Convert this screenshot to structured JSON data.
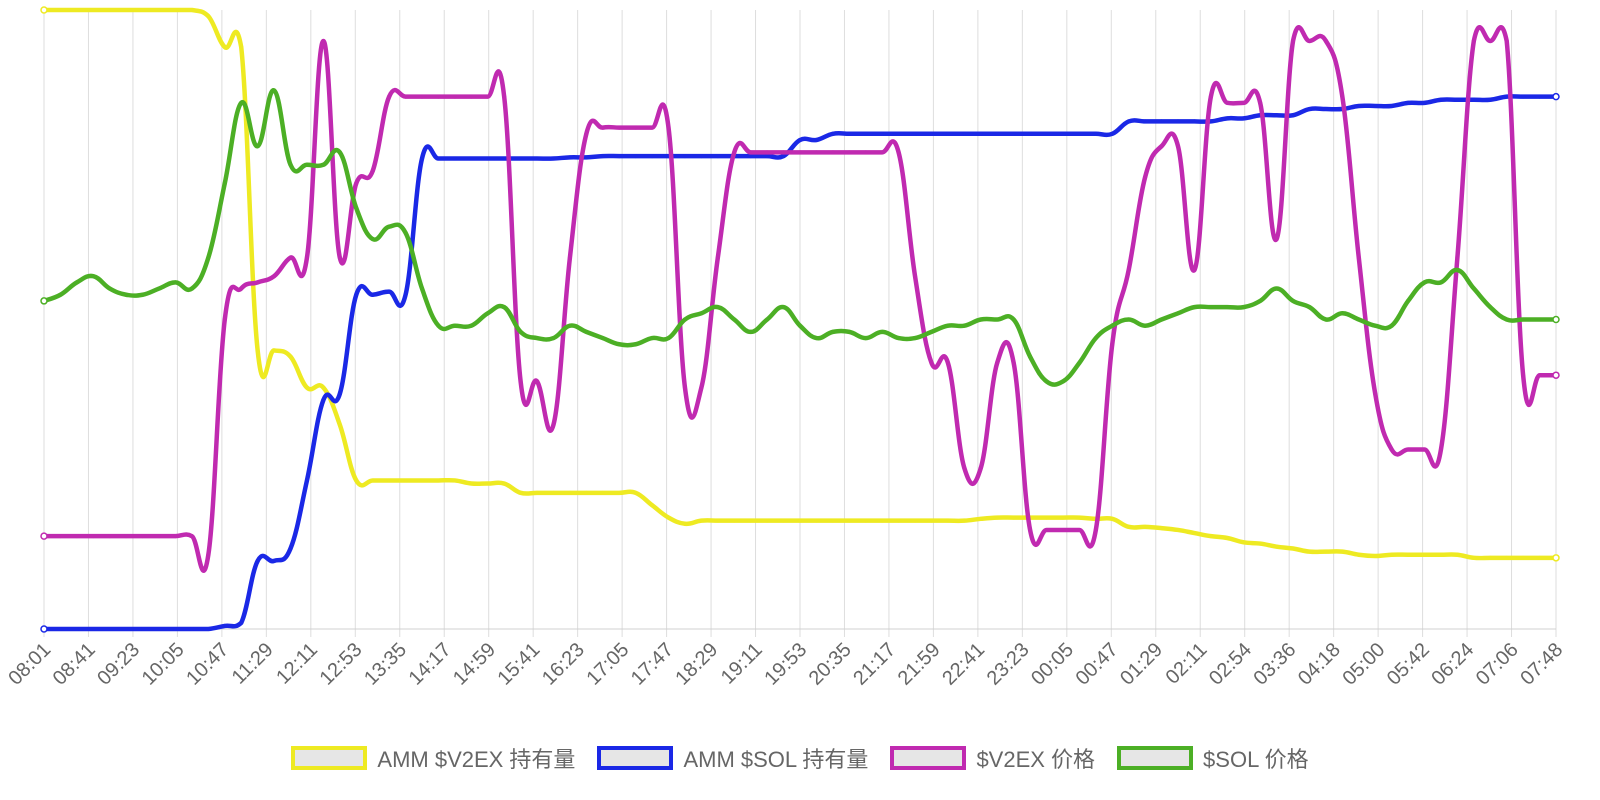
{
  "chart_data": {
    "type": "line",
    "title": "",
    "xlabel": "",
    "ylabel": "",
    "grid": true,
    "legend_position": "bottom",
    "x_tick_labels": [
      "08:01",
      "08:41",
      "09:23",
      "10:05",
      "10:47",
      "11:29",
      "12:11",
      "12:53",
      "13:35",
      "14:17",
      "14:59",
      "15:41",
      "16:23",
      "17:05",
      "17:47",
      "18:29",
      "19:11",
      "19:53",
      "20:35",
      "21:17",
      "21:59",
      "22:41",
      "23:23",
      "00:05",
      "00:47",
      "01:29",
      "02:11",
      "02:54",
      "03:36",
      "04:18",
      "05:00",
      "05:42",
      "06:24",
      "07:06",
      "07:48"
    ],
    "series": [
      {
        "name": "AMM $V2EX 持有量",
        "color": "#eeea22",
        "values": [
          1,
          1,
          1,
          1,
          1,
          1,
          1,
          1,
          1,
          1,
          0.99,
          0.94,
          0.94,
          0.45,
          0.45,
          0.44,
          0.39,
          0.39,
          0.33,
          0.24,
          0.24,
          0.24,
          0.24,
          0.24,
          0.24,
          0.24,
          0.235,
          0.235,
          0.235,
          0.22,
          0.22,
          0.22,
          0.22,
          0.22,
          0.22,
          0.22,
          0.22,
          0.2,
          0.18,
          0.17,
          0.175,
          0.175,
          0.175,
          0.175,
          0.175,
          0.175,
          0.175,
          0.175,
          0.175,
          0.175,
          0.175,
          0.175,
          0.175,
          0.175,
          0.175,
          0.175,
          0.175,
          0.178,
          0.18,
          0.18,
          0.18,
          0.18,
          0.18,
          0.18,
          0.178,
          0.178,
          0.165,
          0.165,
          0.163,
          0.16,
          0.155,
          0.15,
          0.147,
          0.14,
          0.138,
          0.133,
          0.13,
          0.125,
          0.125,
          0.125,
          0.12,
          0.118,
          0.12,
          0.12,
          0.12,
          0.12,
          0.12,
          0.115,
          0.115,
          0.115,
          0.115,
          0.115,
          0.115
        ]
      },
      {
        "name": "AMM $SOL 持有量",
        "color": "#1a28e6",
        "values": [
          0,
          0,
          0,
          0,
          0,
          0,
          0,
          0,
          0,
          0,
          0,
          0.005,
          0.01,
          0.11,
          0.11,
          0.13,
          0.24,
          0.37,
          0.38,
          0.54,
          0.54,
          0.545,
          0.54,
          0.76,
          0.76,
          0.76,
          0.76,
          0.76,
          0.76,
          0.76,
          0.76,
          0.76,
          0.762,
          0.762,
          0.764,
          0.764,
          0.764,
          0.764,
          0.764,
          0.764,
          0.764,
          0.764,
          0.764,
          0.764,
          0.764,
          0.764,
          0.79,
          0.79,
          0.8,
          0.8,
          0.8,
          0.8,
          0.8,
          0.8,
          0.8,
          0.8,
          0.8,
          0.8,
          0.8,
          0.8,
          0.8,
          0.8,
          0.8,
          0.8,
          0.8,
          0.8,
          0.82,
          0.82,
          0.82,
          0.82,
          0.82,
          0.82,
          0.825,
          0.825,
          0.83,
          0.83,
          0.83,
          0.84,
          0.84,
          0.84,
          0.845,
          0.845,
          0.845,
          0.85,
          0.85,
          0.855,
          0.855,
          0.855,
          0.855,
          0.86,
          0.86,
          0.86,
          0.86
        ]
      },
      {
        "name": "$V2EX 价格",
        "color": "#c02ab0",
        "values": [
          0.15,
          0.15,
          0.15,
          0.15,
          0.15,
          0.15,
          0.15,
          0.15,
          0.15,
          0.15,
          0.12,
          0.5,
          0.55,
          0.56,
          0.57,
          0.6,
          0.6,
          0.95,
          0.6,
          0.72,
          0.74,
          0.86,
          0.86,
          0.86,
          0.86,
          0.86,
          0.86,
          0.86,
          0.86,
          0.4,
          0.4,
          0.33,
          0.6,
          0.8,
          0.81,
          0.81,
          0.81,
          0.81,
          0.81,
          0.39,
          0.39,
          0.6,
          0.77,
          0.77,
          0.77,
          0.77,
          0.77,
          0.77,
          0.77,
          0.77,
          0.77,
          0.77,
          0.77,
          0.57,
          0.43,
          0.43,
          0.26,
          0.26,
          0.43,
          0.43,
          0.16,
          0.16,
          0.16,
          0.16,
          0.16,
          0.46,
          0.58,
          0.73,
          0.78,
          0.78,
          0.58,
          0.86,
          0.85,
          0.85,
          0.85,
          0.63,
          0.95,
          0.95,
          0.95,
          0.86,
          0.6,
          0.38,
          0.29,
          0.29,
          0.29,
          0.29,
          0.6,
          0.95,
          0.95,
          0.95,
          0.41,
          0.41,
          0.41
        ]
      },
      {
        "name": "$SOL 价格",
        "color": "#4caf25",
        "values": [
          0.53,
          0.54,
          0.56,
          0.57,
          0.55,
          0.54,
          0.54,
          0.55,
          0.56,
          0.55,
          0.6,
          0.72,
          0.85,
          0.78,
          0.87,
          0.75,
          0.75,
          0.75,
          0.77,
          0.68,
          0.63,
          0.65,
          0.64,
          0.55,
          0.49,
          0.49,
          0.49,
          0.51,
          0.52,
          0.48,
          0.47,
          0.47,
          0.49,
          0.48,
          0.47,
          0.46,
          0.46,
          0.47,
          0.47,
          0.5,
          0.51,
          0.52,
          0.5,
          0.48,
          0.5,
          0.52,
          0.49,
          0.47,
          0.48,
          0.48,
          0.47,
          0.48,
          0.47,
          0.47,
          0.48,
          0.49,
          0.49,
          0.5,
          0.5,
          0.5,
          0.44,
          0.4,
          0.4,
          0.43,
          0.47,
          0.49,
          0.5,
          0.49,
          0.5,
          0.51,
          0.52,
          0.52,
          0.52,
          0.52,
          0.53,
          0.55,
          0.53,
          0.52,
          0.5,
          0.51,
          0.5,
          0.49,
          0.49,
          0.53,
          0.56,
          0.56,
          0.58,
          0.55,
          0.52,
          0.5,
          0.5,
          0.5,
          0.5
        ]
      }
    ]
  }
}
